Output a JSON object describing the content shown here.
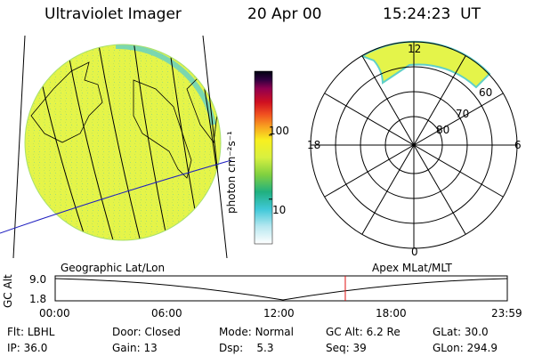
{
  "header": {
    "instrument": "Ultraviolet Imager",
    "date": "20 Apr 00",
    "time": "15:24:23  UT"
  },
  "geo_panel": {
    "label": "Geographic Lat/Lon"
  },
  "polar_panel": {
    "label": "Apex MLat/MLT",
    "mlt_labels": [
      "12",
      "18",
      "6",
      "0"
    ],
    "lat_labels": [
      "60",
      "70",
      "80"
    ]
  },
  "colorbar": {
    "unit": "photon cm⁻²s⁻¹",
    "tick_labels": [
      "100",
      "10"
    ],
    "tick_values": [
      100,
      10
    ],
    "min": 2,
    "max": 1000,
    "colors": [
      "#ffffff",
      "#b8e8f0",
      "#40c8d8",
      "#20b080",
      "#80d040",
      "#d8f040",
      "#f8f020",
      "#f8a020",
      "#f05020",
      "#d01020",
      "#900050",
      "#300040",
      "#000010"
    ]
  },
  "altitude_strip": {
    "ylabel": "GC Alt",
    "y_ticks": [
      "9.0",
      "1.8"
    ],
    "x_ticks": [
      "00:00",
      "06:00",
      "12:00",
      "18:00",
      "23:59"
    ],
    "current_time_hours": 15.4
  },
  "info": {
    "filter": {
      "label": "Flt:",
      "value": "LBHL"
    },
    "ip": {
      "label": "IP:",
      "value": "36.0"
    },
    "door": {
      "label": "Door:",
      "value": "Closed"
    },
    "gain": {
      "label": "Gain:",
      "value": "13"
    },
    "mode": {
      "label": "Mode:",
      "value": "Normal"
    },
    "dsp": {
      "label": "Dsp:",
      "value": "5.3"
    },
    "gc_alt": {
      "label": "GC Alt:",
      "value": "6.2 Re"
    },
    "seq": {
      "label": "Seq:",
      "value": "39"
    },
    "glat": {
      "label": "GLat:",
      "value": "30.0"
    },
    "glon": {
      "label": "GLon:",
      "value": "294.9"
    }
  }
}
